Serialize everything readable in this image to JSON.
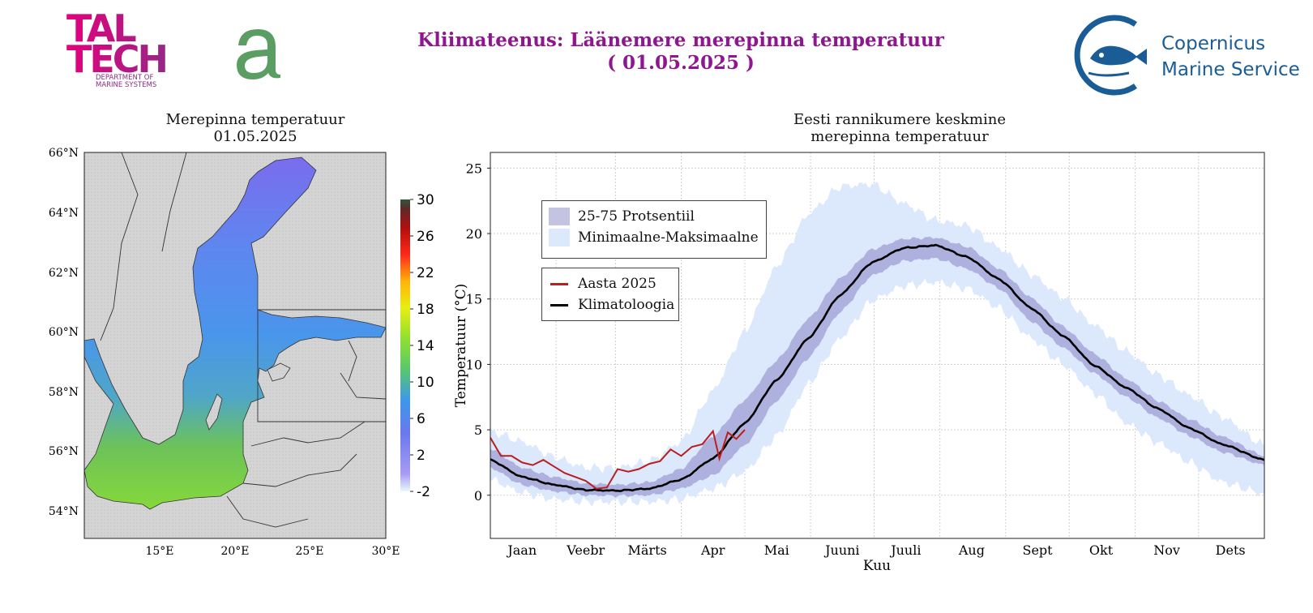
{
  "header": {
    "title_line1": "Kliimateenus: Läänemere merepinna temperatuur",
    "title_line2": "( 01.05.2025 )",
    "taltech_logo_text": "TAL TECH",
    "taltech_dept": "DEPARTMENT OF MARINE SYSTEMS",
    "copernicus_line1": "Copernicus",
    "copernicus_line2": "Marine Service"
  },
  "map": {
    "title_line1": "Merepinna temperatuur",
    "title_line2": "01.05.2025",
    "lat_labels": [
      "66°N",
      "64°N",
      "62°N",
      "60°N",
      "58°N",
      "56°N",
      "54°N"
    ],
    "lon_labels": [
      "15°E",
      "20°E",
      "25°E",
      "30°E"
    ],
    "colorbar_ticks": [
      "30",
      "26",
      "22",
      "18",
      "14",
      "10",
      "6",
      "2",
      "-2"
    ],
    "colors": {
      "land": "#d7d7d7",
      "sea_north": "#6a8cf0",
      "sea_south": "#5fc25a"
    }
  },
  "chart": {
    "title_line1": "Eesti rannikumere keskmine",
    "title_line2": "merepinna temperatuur",
    "ylabel": "Temperatuur (°C)",
    "xlabel": "Kuu",
    "legend_top": [
      {
        "label": "25-75 Protsentiil",
        "color": "#c4c4e2"
      },
      {
        "label": "Minimaalne-Maksimaalne",
        "color": "#dce8fb"
      }
    ],
    "legend_bottom": [
      {
        "label": "Aasta 2025",
        "color": "#b91f1f"
      },
      {
        "label": "Klimatoloogia",
        "color": "#000000"
      }
    ]
  },
  "chart_data": {
    "type": "line",
    "title": "Eesti rannikumere keskmine merepinna temperatuur",
    "xlabel": "Kuu",
    "ylabel": "Temperatuur (°C)",
    "ylim": [
      -3.3,
      26.2
    ],
    "xlim": [
      0,
      365
    ],
    "yticks": [
      0,
      5,
      10,
      15,
      20,
      25
    ],
    "month_labels": [
      "Jaan",
      "Veebr",
      "Märts",
      "Apr",
      "Mai",
      "Juuni",
      "Juuli",
      "Aug",
      "Sept",
      "Okt",
      "Nov",
      "Dets"
    ],
    "grid": true,
    "legend_placement": "upper-left",
    "x_day_of_year": [
      0,
      15,
      30,
      45,
      60,
      75,
      90,
      105,
      120,
      135,
      150,
      165,
      180,
      195,
      210,
      225,
      240,
      255,
      270,
      285,
      300,
      315,
      330,
      345,
      365
    ],
    "series": [
      {
        "name": "Klimatoloogia",
        "values": [
          2.7,
          1.4,
          0.8,
          0.4,
          0.35,
          0.5,
          1.2,
          2.8,
          5.5,
          8.8,
          12.0,
          15.3,
          17.8,
          18.9,
          19.1,
          18.2,
          16.5,
          14.3,
          12.2,
          9.9,
          8.2,
          6.6,
          5.1,
          3.9,
          2.7
        ]
      },
      {
        "name": "25-75 Protsentiil (alumine)",
        "values": [
          2.1,
          0.8,
          0.3,
          0.0,
          -0.05,
          0.0,
          0.5,
          1.5,
          3.8,
          7.2,
          10.5,
          14.0,
          16.8,
          17.9,
          18.1,
          17.3,
          15.8,
          13.3,
          11.3,
          9.3,
          7.5,
          5.9,
          4.5,
          3.3,
          2.3
        ]
      },
      {
        "name": "25-75 Protsentiil (ülemine)",
        "values": [
          3.6,
          2.1,
          1.4,
          0.9,
          0.8,
          1.0,
          2.0,
          4.5,
          7.3,
          10.3,
          13.5,
          16.6,
          18.8,
          19.6,
          19.7,
          19.0,
          17.3,
          15.1,
          12.9,
          10.8,
          8.9,
          7.2,
          5.8,
          4.5,
          3.0
        ]
      },
      {
        "name": "Minimaalne-Maksimaalne (alumine)",
        "values": [
          1.2,
          0.2,
          -0.3,
          -0.5,
          -0.5,
          -0.5,
          -0.3,
          0.5,
          1.8,
          4.5,
          8.5,
          12.0,
          14.9,
          16.0,
          16.3,
          15.8,
          14.3,
          12.0,
          10.0,
          7.8,
          5.5,
          4.0,
          2.5,
          1.0,
          0.1
        ]
      },
      {
        "name": "Minimaalne-Maksimaalne (ülemine)",
        "values": [
          4.9,
          4.1,
          2.9,
          2.1,
          2.1,
          2.6,
          4.1,
          8.0,
          12.5,
          17.5,
          21.5,
          23.6,
          23.8,
          22.3,
          21.0,
          20.6,
          18.9,
          16.9,
          15.1,
          13.0,
          11.0,
          9.2,
          7.6,
          6.0,
          3.8
        ]
      }
    ],
    "year_2025": {
      "name": "Aasta 2025",
      "x_day_of_year": [
        0,
        5,
        10,
        15,
        20,
        25,
        30,
        35,
        40,
        45,
        50,
        55,
        60,
        65,
        70,
        75,
        80,
        85,
        90,
        95,
        100,
        105,
        108,
        112,
        116,
        120
      ],
      "values": [
        4.4,
        3.0,
        3.0,
        2.5,
        2.3,
        2.7,
        2.2,
        1.7,
        1.4,
        1.1,
        0.5,
        0.6,
        2.0,
        1.8,
        2.0,
        2.4,
        2.6,
        3.5,
        3.0,
        3.7,
        3.9,
        4.9,
        2.8,
        4.8,
        4.3,
        5.0
      ]
    }
  }
}
